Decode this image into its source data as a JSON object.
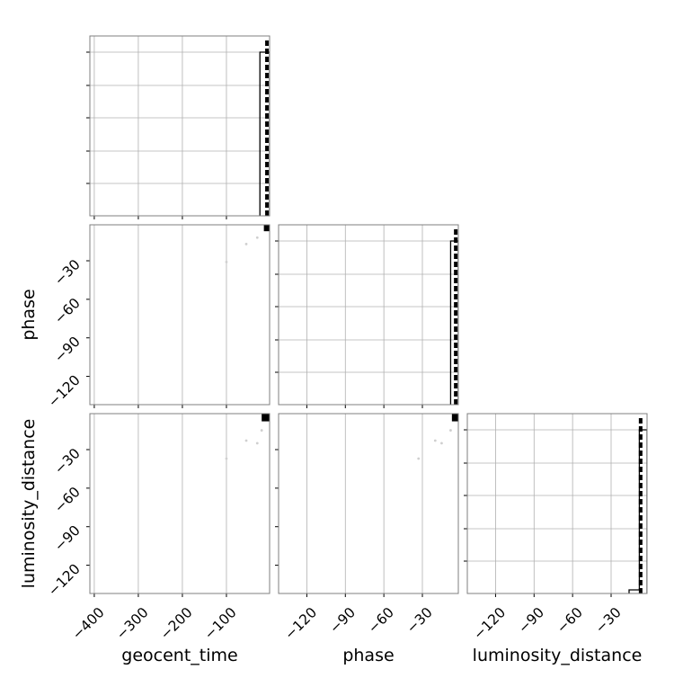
{
  "chart_data": {
    "type": "scatter",
    "layout": "corner",
    "parameters": [
      "geocent_time",
      "phase",
      "luminosity_distance"
    ],
    "axes": {
      "geocent_time": {
        "label": "geocent_time",
        "range": [
          -410,
          -2
        ],
        "ticks": [
          -400,
          -300,
          -200,
          -100
        ],
        "tick_labels": [
          "−400",
          "−300",
          "−200",
          "−100"
        ]
      },
      "phase": {
        "label": "phase",
        "range": [
          -142,
          -2
        ],
        "ticks": [
          -120,
          -90,
          -60,
          -30
        ],
        "tick_labels": [
          "−120",
          "−90",
          "−60",
          "−30"
        ]
      },
      "luminosity_distance": {
        "label": "luminosity_distance",
        "range": [
          -142,
          -2
        ],
        "ticks": [
          -120,
          -90,
          -60,
          -30
        ],
        "tick_labels": [
          "−120",
          "−90",
          "−60",
          "−30"
        ]
      }
    },
    "histograms": {
      "geocent_time": {
        "bins": [
          {
            "x0": -24,
            "x1": -16,
            "y": 0.91
          },
          {
            "x0": -16,
            "x1": -8,
            "y": 0.91
          },
          {
            "x0": -8,
            "x1": -2,
            "y": 0.91
          }
        ],
        "dashed_at": -8,
        "dashed_height": 0.98
      },
      "phase": {
        "bins": [
          {
            "x0": -8,
            "x1": -4,
            "y": 0.91
          },
          {
            "x0": -4,
            "x1": -2,
            "y": 0.91
          }
        ],
        "dashed_at": -4,
        "dashed_height": 0.98
      },
      "luminosity_distance": {
        "bins": [
          {
            "x0": -16,
            "x1": -8,
            "y": 0.02
          },
          {
            "x0": -8,
            "x1": -2,
            "y": 0.91
          }
        ],
        "dashed_at": -7,
        "dashed_height": 0.98
      }
    },
    "scatter": [
      {
        "x": "geocent_time",
        "y": "phase",
        "points": [
          [
            -100,
            -31
          ],
          [
            -55,
            -17
          ],
          [
            -30,
            -12
          ]
        ],
        "dense_region": {
          "x": [
            -15,
            -2
          ],
          "y": [
            -7,
            -2
          ]
        }
      },
      {
        "x": "geocent_time",
        "y": "luminosity_distance",
        "points": [
          [
            -100,
            -37
          ],
          [
            -55,
            -23
          ],
          [
            -30,
            -25
          ],
          [
            -20,
            -15
          ]
        ],
        "dense_region": {
          "x": [
            -20,
            -2
          ],
          "y": [
            -8,
            -2
          ]
        }
      },
      {
        "x": "phase",
        "y": "luminosity_distance",
        "points": [
          [
            -33,
            -37
          ],
          [
            -20,
            -23
          ],
          [
            -15,
            -25
          ],
          [
            -8,
            -15
          ]
        ],
        "dense_region": {
          "x": [
            -7,
            -2
          ],
          "y": [
            -8,
            -2
          ]
        }
      }
    ],
    "grid": true,
    "colors": {
      "data": "#000000",
      "grid": "#b0b0b0",
      "scatter_faint": "#cfcfcf",
      "frame": "#7f7f7f"
    }
  }
}
